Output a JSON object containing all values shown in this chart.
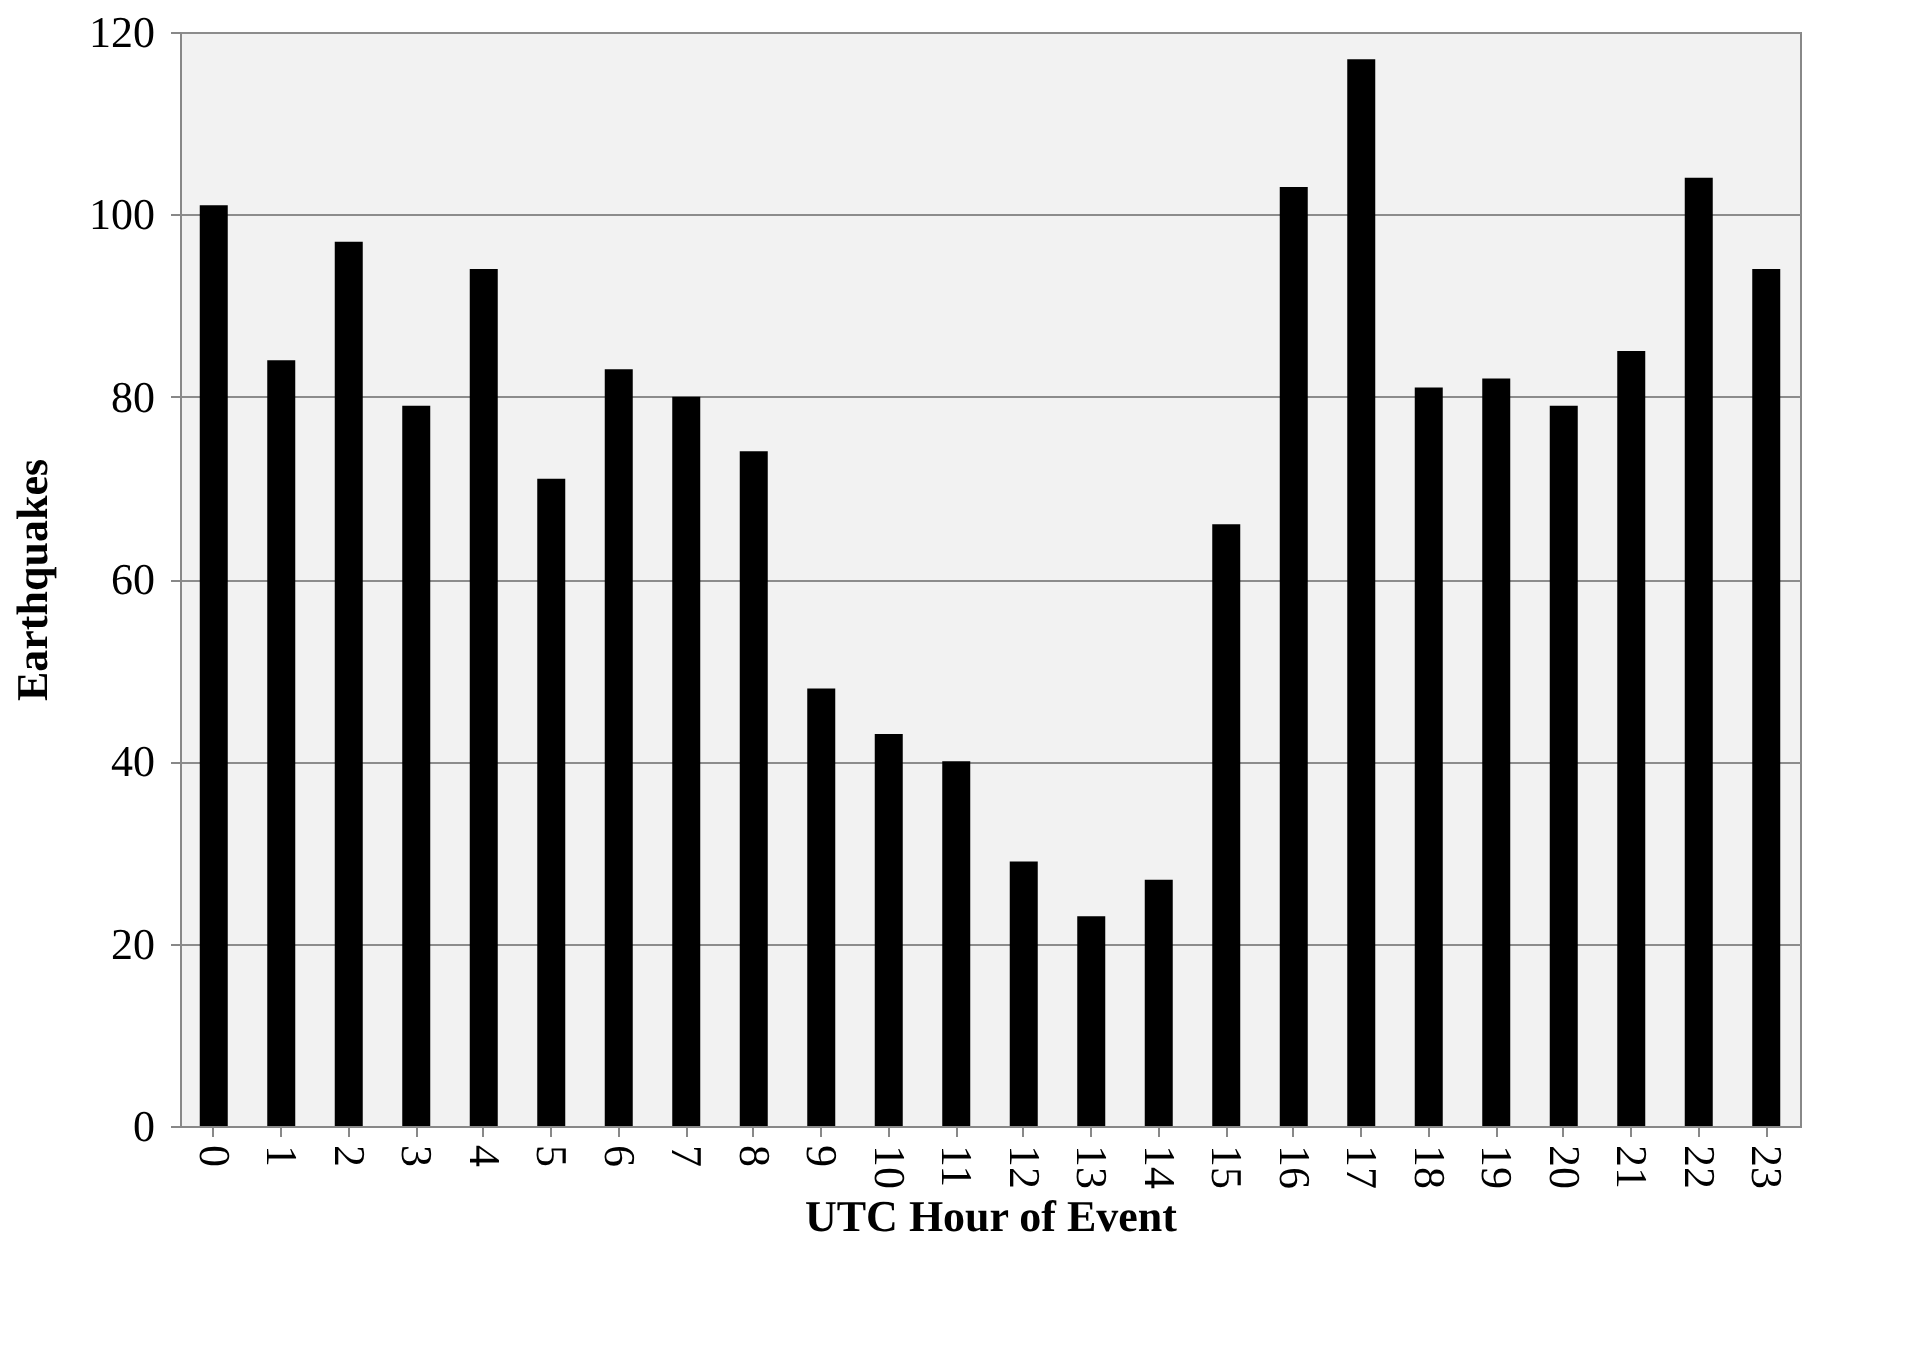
{
  "chart_data": {
    "type": "bar",
    "xlabel": "UTC Hour of Event",
    "ylabel": "Earthquakes",
    "categories": [
      "0",
      "1",
      "2",
      "3",
      "4",
      "5",
      "6",
      "7",
      "8",
      "9",
      "10",
      "11",
      "12",
      "13",
      "14",
      "15",
      "16",
      "17",
      "18",
      "19",
      "20",
      "21",
      "22",
      "23"
    ],
    "values": [
      101,
      84,
      97,
      79,
      94,
      71,
      83,
      80,
      74,
      48,
      43,
      40,
      29,
      23,
      27,
      66,
      103,
      117,
      81,
      82,
      79,
      85,
      104,
      94
    ],
    "color": "#000000",
    "ylim": [
      0,
      120
    ],
    "yticks": [
      0,
      20,
      40,
      60,
      80,
      100,
      120
    ],
    "grid": "y"
  }
}
